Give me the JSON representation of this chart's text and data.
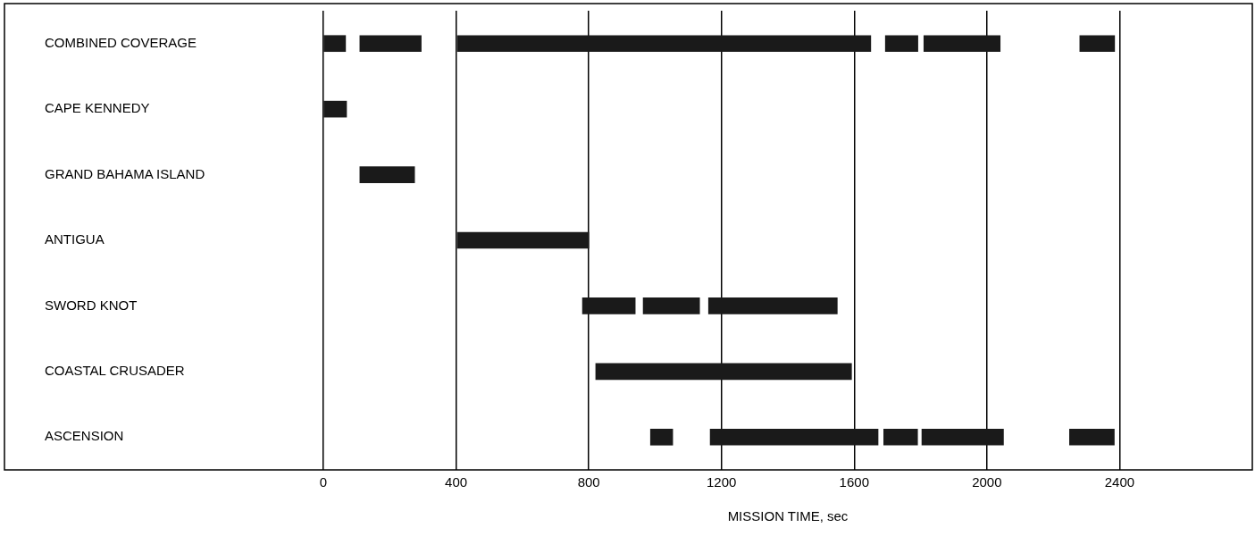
{
  "chart_data": {
    "type": "bar",
    "orientation": "horizontal",
    "xlabel": "MISSION TIME, sec",
    "categories": [
      "COMBINED COVERAGE",
      "CAPE KENNEDY",
      "GRAND BAHAMA ISLAND",
      "ANTIGUA",
      "SWORD KNOT",
      "COASTAL CRUSADER",
      "ASCENSION"
    ],
    "series": [
      {
        "color": "#1a1a1a",
        "base": [
          0,
          0,
          110,
          404,
          781,
          821,
          986
        ],
        "values": [
          67,
          70,
          165,
          396,
          159,
          771,
          67
        ]
      },
      {
        "color": "#1a1a1a",
        "base": [
          110,
          null,
          null,
          null,
          964,
          null,
          1166
        ],
        "values": [
          185,
          null,
          null,
          null,
          170,
          null,
          506
        ]
      },
      {
        "color": "#1a1a1a",
        "base": [
          404,
          null,
          null,
          null,
          1161,
          null,
          1689
        ],
        "values": [
          1246,
          null,
          null,
          null,
          388,
          null,
          102
        ]
      },
      {
        "color": "#1a1a1a",
        "base": [
          1694,
          null,
          null,
          null,
          null,
          null,
          1804
        ],
        "values": [
          98,
          null,
          null,
          null,
          null,
          null,
          246
        ]
      },
      {
        "color": "#1a1a1a",
        "base": [
          1810,
          null,
          null,
          null,
          null,
          null,
          2249
        ],
        "values": [
          230,
          null,
          null,
          null,
          null,
          null,
          135
        ]
      },
      {
        "color": "#1a1a1a",
        "base": [
          2280,
          null,
          null,
          null,
          null,
          null,
          null
        ],
        "values": [
          105,
          null,
          null,
          null,
          null,
          null,
          null
        ]
      }
    ],
    "xlim": [
      0,
      2800
    ],
    "xticks": [
      0,
      400,
      800,
      1200,
      1600,
      2000,
      2400
    ],
    "grid": "x",
    "legend": false
  }
}
